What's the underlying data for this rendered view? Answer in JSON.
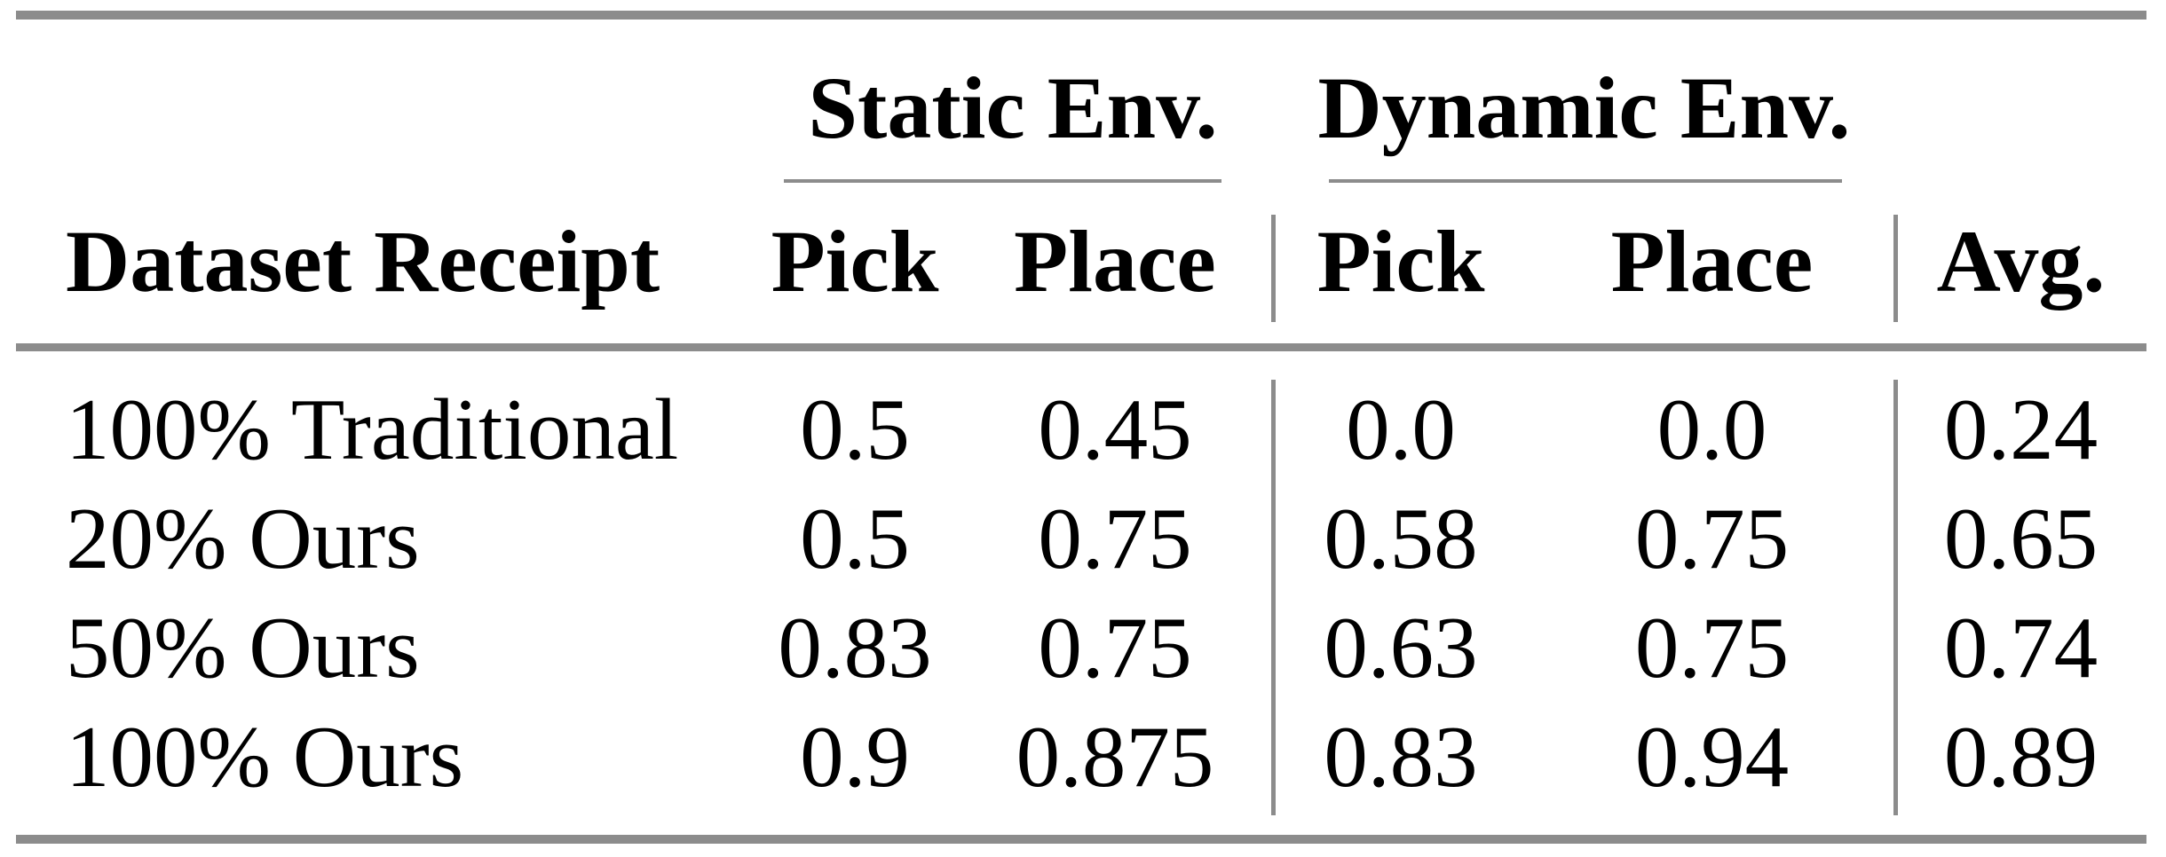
{
  "table": {
    "colors": {
      "rule": "#8c8c8c",
      "text": "#000000",
      "background": "#ffffff"
    },
    "header": {
      "row_label_column": "Dataset Receipt",
      "groups": [
        {
          "label": "Static Env.",
          "columns": [
            "Pick",
            "Place"
          ]
        },
        {
          "label": "Dynamic Env.",
          "columns": [
            "Pick",
            "Place"
          ]
        }
      ],
      "avg_column": "Avg."
    },
    "rows": [
      {
        "label": "100% Traditional",
        "values": [
          "0.5",
          "0.45",
          "0.0",
          "0.0",
          "0.24"
        ]
      },
      {
        "label": "20% Ours",
        "values": [
          "0.5",
          "0.75",
          "0.58",
          "0.75",
          "0.65"
        ]
      },
      {
        "label": "50% Ours",
        "values": [
          "0.83",
          "0.75",
          "0.63",
          "0.75",
          "0.74"
        ]
      },
      {
        "label": "100% Ours",
        "values": [
          "0.9",
          "0.875",
          "0.83",
          "0.94",
          "0.89"
        ]
      }
    ]
  }
}
